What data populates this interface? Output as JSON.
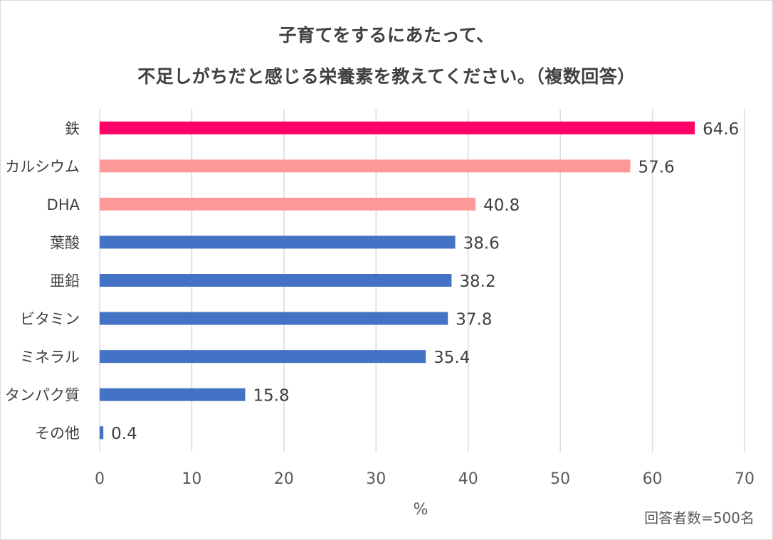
{
  "chart_data": {
    "type": "bar",
    "orientation": "horizontal",
    "title_line1": "子育てをするにあたって、",
    "title_line2": "不足しがちだと感じる栄養素を教えてください。（複数回答）",
    "categories": [
      "鉄",
      "カルシウム",
      "DHA",
      "葉酸",
      "亜鉛",
      "ビタミン",
      "ミネラル",
      "タンパク質",
      "その他"
    ],
    "values": [
      64.6,
      57.6,
      40.8,
      38.6,
      38.2,
      37.8,
      35.4,
      15.8,
      0.4
    ],
    "value_labels": [
      "64.6",
      "57.6",
      "40.8",
      "38.6",
      "38.2",
      "37.8",
      "35.4",
      "15.8",
      "0.4"
    ],
    "bar_colors": [
      "#ff0066",
      "#ff9999",
      "#ff9999",
      "#4472c4",
      "#4472c4",
      "#4472c4",
      "#4472c4",
      "#4472c4",
      "#4472c4"
    ],
    "xlim": [
      0,
      70
    ],
    "xticks": [
      0,
      10,
      20,
      30,
      40,
      50,
      60,
      70
    ],
    "xlabel": "%",
    "ylabel": "",
    "grid": true,
    "legend": "none"
  },
  "footnote": "回答者数=500名"
}
